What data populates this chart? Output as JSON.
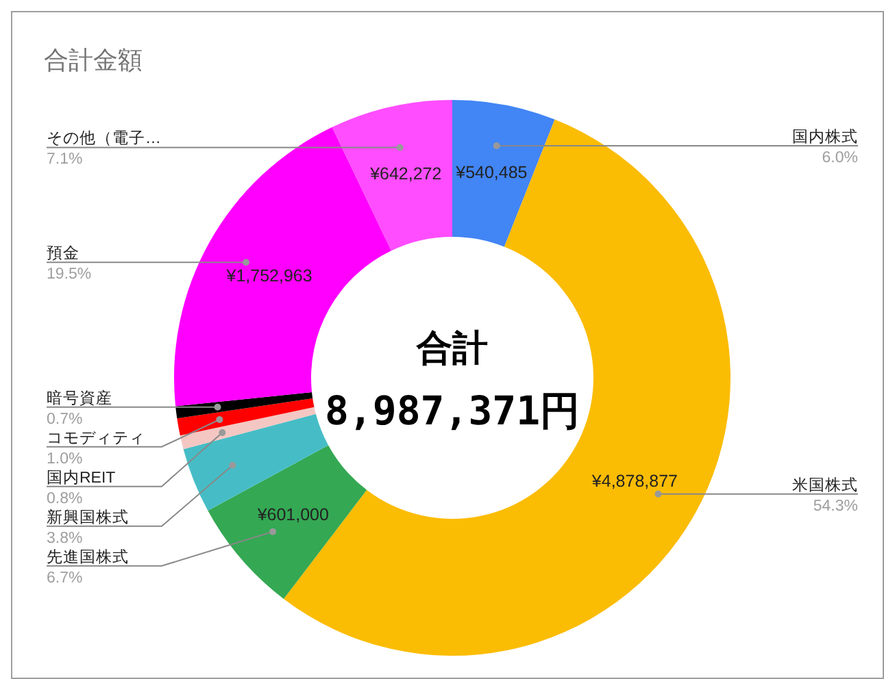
{
  "chart_data": {
    "type": "donut",
    "title": "合計金額",
    "categories": [
      "国内株式",
      "米国株式",
      "先進国株式",
      "新興国株式",
      "国内REIT",
      "コモディティ",
      "暗号資産",
      "預金",
      "その他（電子…"
    ],
    "values": [
      6.0,
      54.3,
      6.7,
      3.8,
      0.8,
      1.0,
      0.7,
      19.5,
      7.1
    ],
    "colors": [
      "#4285f4",
      "#fbbc04",
      "#34a853",
      "#46bdc6",
      "#f4c7c3",
      "#ff0000",
      "#000000",
      "#ff00ff",
      "#ff4dff"
    ],
    "value_labels": [
      "6.0%",
      "54.3%",
      "6.7%",
      "3.8%",
      "0.8%",
      "1.0%",
      "0.7%",
      "19.5%",
      "7.1%"
    ],
    "annotations": [
      "合計",
      "8,987,371円",
      {
        "text": "¥540,485",
        "x": "国内株式"
      },
      {
        "text": "¥4,878,877",
        "x": "米国株式"
      },
      {
        "text": "¥601,000",
        "x": "先進国株式"
      },
      {
        "text": "¥1,752,963",
        "x": "預金"
      },
      {
        "text": "¥642,272",
        "x": "その他（電子…"
      }
    ]
  }
}
